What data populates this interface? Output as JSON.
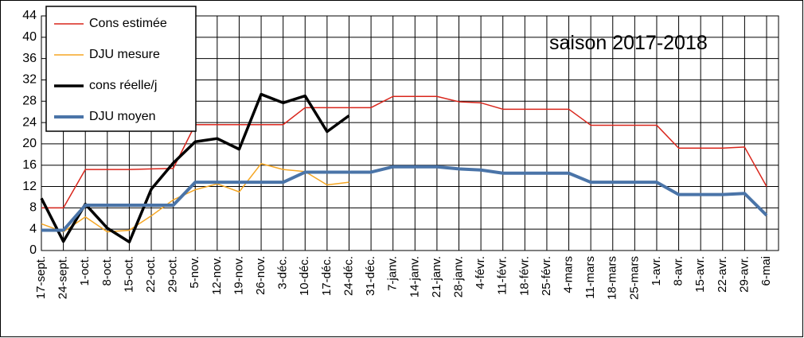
{
  "chart_data": {
    "type": "line",
    "annotation": "saison 2017-2018",
    "categories": [
      "17-sept.",
      "24-sept.",
      "1-oct.",
      "8-oct.",
      "15-oct.",
      "22-oct.",
      "29-oct.",
      "5-nov.",
      "12-nov.",
      "19-nov.",
      "26-nov.",
      "3-déc.",
      "10-déc.",
      "17-déc.",
      "24-déc.",
      "31-déc.",
      "7-janv.",
      "14-janv.",
      "21-janv.",
      "28-janv.",
      "4-févr.",
      "11-févr.",
      "18-févr.",
      "25-févr.",
      "4-mars",
      "11-mars",
      "18-mars",
      "25-mars",
      "1-avr.",
      "8-avr.",
      "15-avr.",
      "22-avr.",
      "29-avr.",
      "6-mai"
    ],
    "series": [
      {
        "name": "Cons estimée",
        "color": "#d9261c",
        "width": 1.5,
        "values": [
          8,
          8,
          15.2,
          15.2,
          15.2,
          15.3,
          15.4,
          23.6,
          23.6,
          23.6,
          23.6,
          23.6,
          26.8,
          26.8,
          26.8,
          26.8,
          28.9,
          28.9,
          28.9,
          27.9,
          27.7,
          26.5,
          26.5,
          26.5,
          26.5,
          23.5,
          23.5,
          23.5,
          23.5,
          19.2,
          19.2,
          19.2,
          19.4,
          12
        ]
      },
      {
        "name": "DJU mesure",
        "color": "#f5a623",
        "width": 1.5,
        "values": [
          5,
          3.5,
          6.3,
          3.5,
          3.8,
          6.5,
          9.5,
          11.4,
          12.5,
          11,
          16.3,
          15.2,
          14.8,
          12.3,
          12.8,
          null,
          null,
          null,
          null,
          null,
          null,
          null,
          null,
          null,
          null,
          null,
          null,
          null,
          null,
          null,
          null,
          null,
          null,
          null
        ]
      },
      {
        "name": "cons réelle/j",
        "color": "#000000",
        "width": 3.5,
        "values": [
          9.8,
          1.7,
          8.7,
          4.2,
          1.6,
          11.5,
          16.4,
          20.4,
          21,
          19,
          29.3,
          27.7,
          29,
          22.3,
          25.3,
          null,
          null,
          null,
          null,
          null,
          null,
          null,
          null,
          null,
          null,
          null,
          null,
          null,
          null,
          null,
          null,
          null,
          null,
          null
        ]
      },
      {
        "name": "DJU moyen",
        "color": "#4a74a8",
        "width": 4,
        "values": [
          3.8,
          3.8,
          8.5,
          8.5,
          8.5,
          8.5,
          8.5,
          12.8,
          12.8,
          12.8,
          12.8,
          12.8,
          14.7,
          14.7,
          14.7,
          14.7,
          15.7,
          15.7,
          15.7,
          15.3,
          15.1,
          14.5,
          14.5,
          14.5,
          14.5,
          12.8,
          12.8,
          12.8,
          12.8,
          10.5,
          10.5,
          10.5,
          10.7,
          6.6
        ]
      }
    ],
    "ylim": [
      0,
      44
    ],
    "yticks": [
      0,
      4,
      8,
      12,
      16,
      20,
      24,
      28,
      32,
      36,
      40,
      44
    ],
    "grid": true,
    "legend": "upper left"
  }
}
